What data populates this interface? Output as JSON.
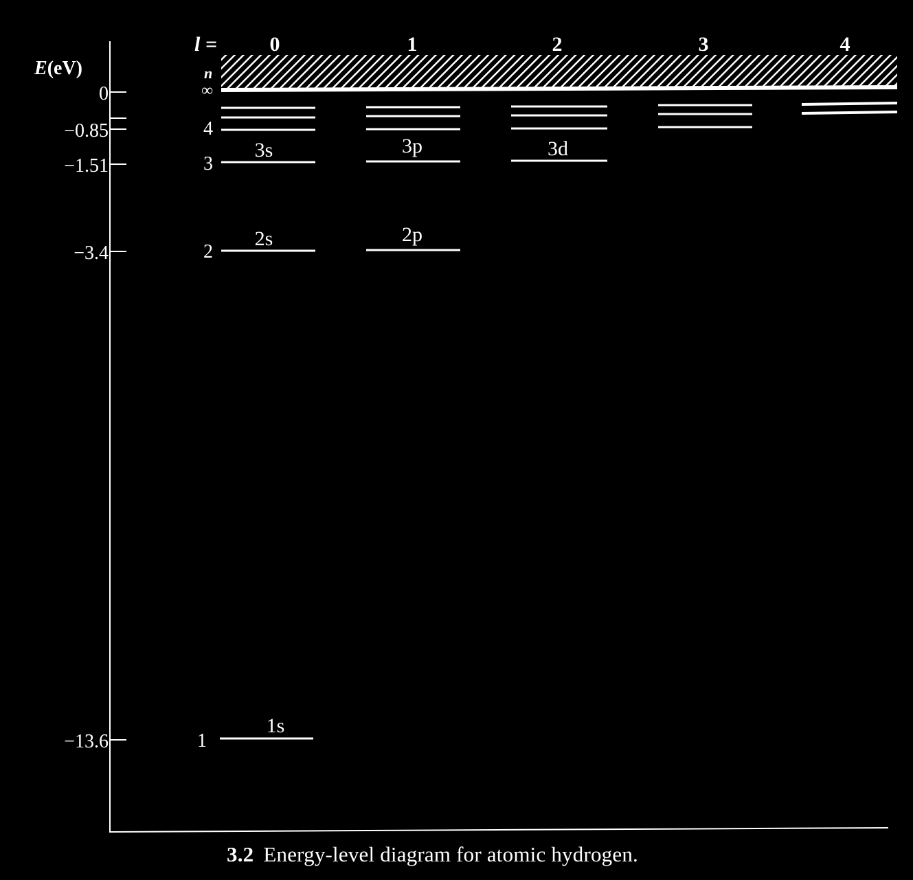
{
  "diagram": {
    "axis_label_main": "E",
    "axis_label_unit": "(eV)",
    "l_label": "l =",
    "n_label": "n",
    "n_infinity": "∞",
    "l_values": [
      "0",
      "1",
      "2",
      "3",
      "4"
    ],
    "energy_ticks": [
      {
        "label": "0",
        "value": 0
      },
      {
        "label": "−0.85",
        "value": -0.85
      },
      {
        "label": "−1.51",
        "value": -1.51
      },
      {
        "label": "−3.4",
        "value": -3.4
      },
      {
        "label": "−13.6",
        "value": -13.6
      }
    ],
    "n_levels": [
      {
        "label": "4",
        "n": 4
      },
      {
        "label": "3",
        "n": 3
      },
      {
        "label": "2",
        "n": 2
      },
      {
        "label": "1",
        "n": 1
      }
    ],
    "orbital_labels": [
      {
        "text": "3s",
        "l": 0,
        "n": 3
      },
      {
        "text": "3p",
        "l": 1,
        "n": 3
      },
      {
        "text": "3d",
        "l": 2,
        "n": 3
      },
      {
        "text": "2s",
        "l": 0,
        "n": 2
      },
      {
        "text": "2p",
        "l": 1,
        "n": 2
      },
      {
        "text": "1s",
        "l": 0,
        "n": 1
      }
    ],
    "continuum": "hatched"
  },
  "caption": {
    "number": "3.2",
    "text": "Energy-level diagram for atomic hydrogen."
  }
}
